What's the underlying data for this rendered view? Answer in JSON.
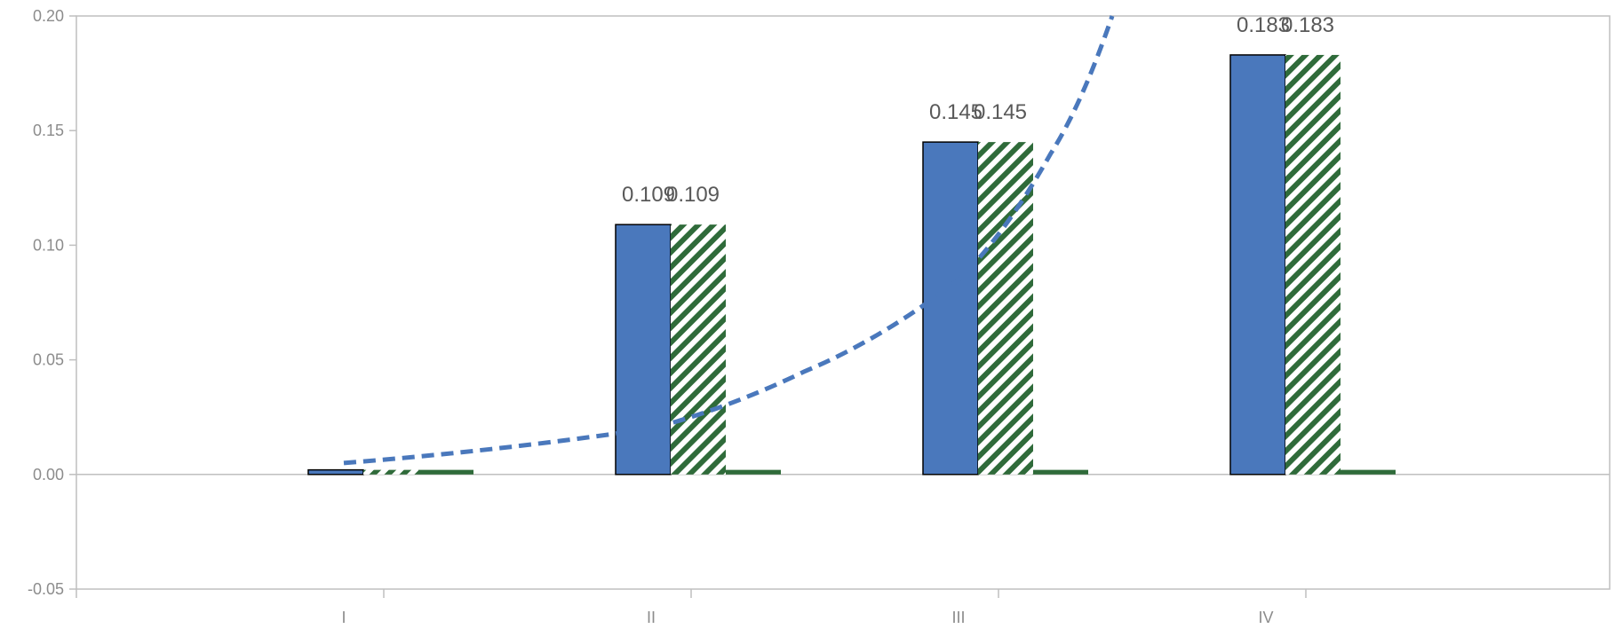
{
  "chart_data": {
    "type": "bar",
    "categories": [
      "I",
      "II",
      "III",
      "IV"
    ],
    "ylim": [
      -0.05,
      0.2
    ],
    "yticks": [
      "0.20",
      "0.15",
      "0.10",
      "0.05",
      "0.00",
      "-0.05"
    ],
    "grid": false,
    "legend": "none",
    "series": [
      {
        "values": [
          0.002,
          0.109,
          0.145,
          0.183
        ],
        "style": "solid",
        "color": "#4a78bc",
        "outline": "#000000",
        "labels": [
          "",
          "0.109",
          "0.145",
          "0.183"
        ]
      },
      {
        "values": [
          0.002,
          0.109,
          0.145,
          0.183
        ],
        "style": "hatched",
        "color": "#2f6b3a",
        "labels": [
          "",
          "0.109",
          "0.145",
          "0.183"
        ]
      },
      {
        "values": [
          0.002,
          0.002,
          0.002,
          0.002
        ],
        "style": "solid",
        "color": "#2f6b3a"
      }
    ],
    "trendline": {
      "type": "exponential",
      "color": "#4a78bc",
      "style": "dashed",
      "points": [
        [
          1,
          0.005
        ],
        [
          2,
          0.02
        ],
        [
          2.5,
          0.045
        ],
        [
          3,
          0.085
        ],
        [
          3.3,
          0.14
        ],
        [
          3.5,
          0.2
        ]
      ]
    }
  }
}
